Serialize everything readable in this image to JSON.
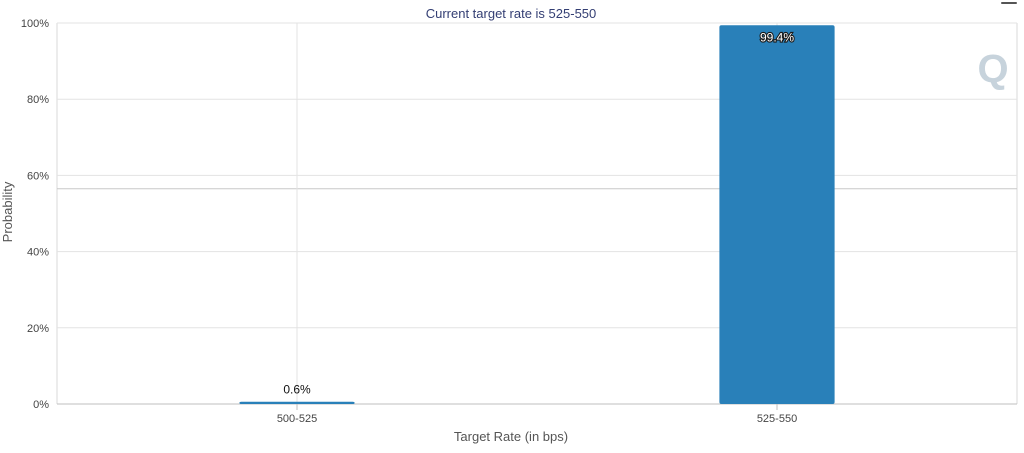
{
  "chart_data": {
    "type": "bar",
    "title": "Current target rate is 525-550",
    "xlabel": "Target Rate (in bps)",
    "ylabel": "Probability",
    "categories": [
      "500-525",
      "525-550"
    ],
    "values": [
      0.6,
      99.4
    ],
    "data_labels": [
      "0.6%",
      "99.4%"
    ],
    "ylim": [
      0,
      100
    ],
    "yticks": [
      "0%",
      "20%",
      "40%",
      "60%",
      "80%",
      "100%"
    ],
    "grid": true,
    "bar_color": "#2980b9"
  },
  "watermark": {
    "text": "Q",
    "color": "#c7d3dc"
  },
  "menu": {
    "icon": "menu-icon"
  }
}
